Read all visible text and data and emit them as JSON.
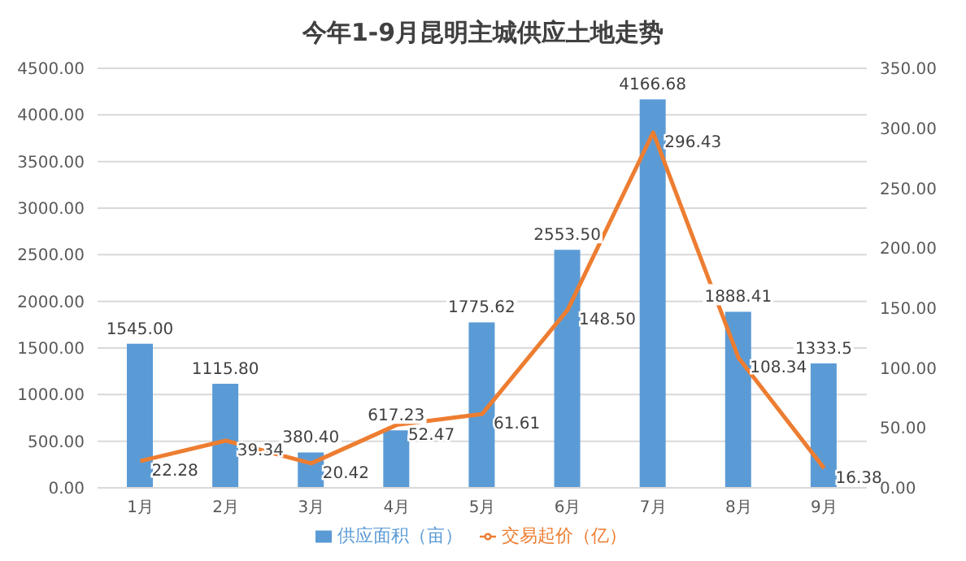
{
  "chart_data": {
    "type": "bar",
    "title": "今年1-9月昆明主城供应土地走势",
    "categories": [
      "1月",
      "2月",
      "3月",
      "4月",
      "5月",
      "6月",
      "7月",
      "8月",
      "9月"
    ],
    "series": [
      {
        "name": "供应面积（亩）",
        "color": "#5b9bd5",
        "values": [
          1545.0,
          1115.8,
          380.4,
          617.23,
          1775.62,
          2553.5,
          4166.68,
          1888.41,
          1333.5
        ],
        "value_labels": [
          "1545.00",
          "1115.80",
          "380.40",
          "617.23",
          "1775.62",
          "2553.50",
          "4166.68",
          "1888.41",
          "1333.5"
        ]
      },
      {
        "name": "交易起价（亿）",
        "type": "line",
        "axis": "y2",
        "color": "#ed7d31",
        "values": [
          22.28,
          39.34,
          20.42,
          52.47,
          61.61,
          148.5,
          296.43,
          108.34,
          16.38
        ],
        "value_labels": [
          "22.28",
          "39.34",
          "20.42",
          "52.47",
          "61.61",
          "148.50",
          "296.43",
          "108.34",
          "16.38"
        ]
      }
    ],
    "ylim": [
      0,
      4500
    ],
    "yticks": [
      {
        "value": 0,
        "label": "0.00"
      },
      {
        "value": 500,
        "label": "500.00"
      },
      {
        "value": 1000,
        "label": "1000.00"
      },
      {
        "value": 1500,
        "label": "1500.00"
      },
      {
        "value": 2000,
        "label": "2000.00"
      },
      {
        "value": 2500,
        "label": "2500.00"
      },
      {
        "value": 3000,
        "label": "3000.00"
      },
      {
        "value": 3500,
        "label": "3500.00"
      },
      {
        "value": 4000,
        "label": "4000.00"
      },
      {
        "value": 4500,
        "label": "4500.00"
      }
    ],
    "y2lim": [
      0,
      350
    ],
    "y2ticks": [
      {
        "value": 0,
        "label": "0.00"
      },
      {
        "value": 50,
        "label": "50.00"
      },
      {
        "value": 100,
        "label": "100.00"
      },
      {
        "value": 150,
        "label": "150.00"
      },
      {
        "value": 200,
        "label": "200.00"
      },
      {
        "value": 250,
        "label": "250.00"
      },
      {
        "value": 300,
        "label": "300.00"
      },
      {
        "value": 350,
        "label": "350.00"
      }
    ],
    "grid": "y",
    "legend": "bottom",
    "marker": "none",
    "line_style": "solid"
  }
}
